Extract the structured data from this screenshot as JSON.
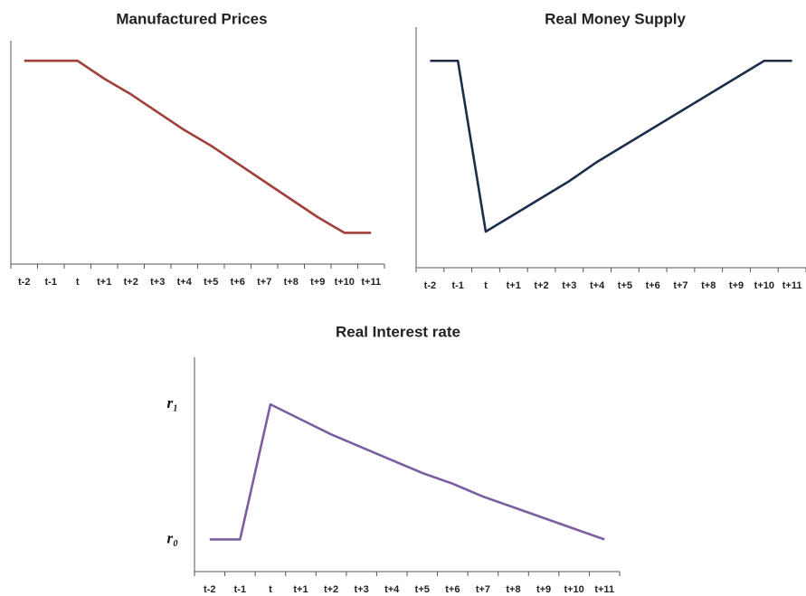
{
  "chart_data": [
    {
      "type": "line",
      "title": "Manufactured Prices",
      "categories": [
        "t-2",
        "t-1",
        "t",
        "t+1",
        "t+2",
        "t+3",
        "t+4",
        "t+5",
        "t+6",
        "t+7",
        "t+8",
        "t+9",
        "t+10",
        "t+11"
      ],
      "series": [
        {
          "color": "#a0403a",
          "values": [
            91,
            91,
            91,
            83,
            76,
            68,
            60,
            53,
            45,
            37,
            29,
            21,
            14,
            14
          ]
        }
      ],
      "ylim": [
        0,
        100
      ]
    },
    {
      "type": "line",
      "title": "Real Money Supply",
      "categories": [
        "t-2",
        "t-1",
        "t",
        "t+1",
        "t+2",
        "t+3",
        "t+4",
        "t+5",
        "t+6",
        "t+7",
        "t+8",
        "t+9",
        "t+10",
        "t+11"
      ],
      "series": [
        {
          "color": "#1c2e4a",
          "values": [
            86,
            86,
            15,
            22,
            29,
            36,
            44,
            51,
            58,
            65,
            72,
            79,
            86,
            86
          ]
        }
      ],
      "ylim": [
        0,
        100
      ]
    },
    {
      "type": "line",
      "title": "Real Interest rate",
      "categories": [
        "t-2",
        "t-1",
        "t",
        "t+1",
        "t+2",
        "t+3",
        "t+4",
        "t+5",
        "t+6",
        "t+7",
        "t+8",
        "t+9",
        "t+10",
        "t+11"
      ],
      "series": [
        {
          "color": "#7b5ea0",
          "values": [
            15,
            15,
            78,
            71,
            64,
            58,
            52,
            46,
            41,
            35,
            30,
            25,
            20,
            15
          ]
        }
      ],
      "ylim": [
        0,
        100
      ],
      "yticks": [
        {
          "value": 15,
          "label": "r₀"
        },
        {
          "value": 78,
          "label": "r₁"
        }
      ]
    }
  ]
}
